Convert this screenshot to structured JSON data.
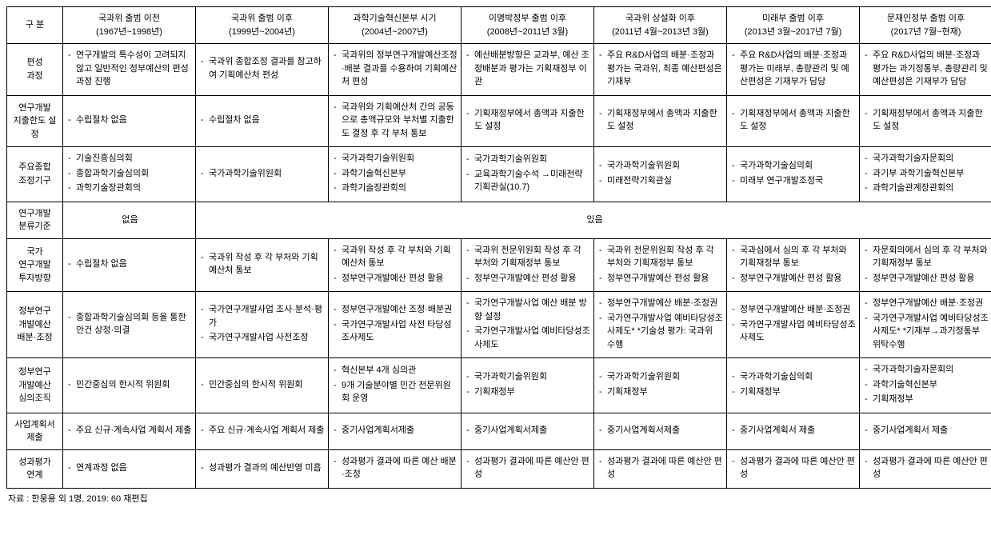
{
  "header": {
    "category": "구 분",
    "periods": [
      {
        "title": "국과위 출범 이전",
        "range": "(1967년~1998년)"
      },
      {
        "title": "국과위 출범 이후",
        "range": "(1999년~2004년)"
      },
      {
        "title": "과학기술혁신본부 시기",
        "range": "(2004년~2007년)"
      },
      {
        "title": "이명박정부 출범 이후",
        "range": "(2008년~2011년 3월)"
      },
      {
        "title": "국과위 상설화 이후",
        "range": "(2011년 4월~2013년 3월)"
      },
      {
        "title": "미래부 출범 이후",
        "range": "(2013년 3월~2017년 7월)"
      },
      {
        "title": "문재인정부 출범 이후",
        "range": "(2017년 7월~현재)"
      }
    ]
  },
  "rows": [
    {
      "label": "편성\n과정",
      "cells": [
        [
          "연구개발의 특수성이 고려되지 않고 일반적인 정부예산의 편성과정 진행"
        ],
        [
          "국과위 종합조정 결과를 참고하여 기획예산처 편성"
        ],
        [
          "국과위의 정부연구개발예산조정·배분 결과를 수용하여 기획예산처 편성"
        ],
        [
          "예산배분방향은 교과부, 예산 조정배분과 평가는 기획재정부 이관"
        ],
        [
          "주요 R&D사업의 배분·조정과 평가는 국과위, 최종 예산편성은 기재부"
        ],
        [
          "주요 R&D사업의 배분·조정과 평가는 미래부, 총량관리 및 예산편성은 기재부가 담당"
        ],
        [
          "주요 R&D사업의 배분·조정과 평가는 과기정통부, 총량관리 및 예산편성은 기재부가 담당"
        ]
      ]
    },
    {
      "label": "연구개발\n지출한도 설정",
      "cells": [
        [
          "수립절차 없음"
        ],
        [
          "수립절차 없음"
        ],
        [
          "국과위와 기획예산처 간의 공동으로 총액규모와 부처별 지출한도 결정 후 각 부처 통보"
        ],
        [
          "기획재정부에서 총액과 지출한도 설정"
        ],
        [
          "기획재정부에서 총액과 지출한도 설정"
        ],
        [
          "기획재정부에서 총액과 지출한도 설정"
        ],
        [
          "기획재정부에서 총액과 지출한도 설정"
        ]
      ]
    },
    {
      "label": "주요종합\n조정기구",
      "cells": [
        [
          "기술진흥심의회",
          "종합과학기술심의회",
          "과학기술장관회의"
        ],
        [
          "국가과학기술위원회"
        ],
        [
          "국가과학기술위원회",
          "과학기술혁신본부",
          "과학기술장관회의"
        ],
        [
          "국가과학기술위원회",
          "교육과학기술수석 →미래전략기획관실(10.7)"
        ],
        [
          "국가과학기술위원회",
          "미래전략기획관실"
        ],
        [
          "국가과학기술심의회",
          "미래부 연구개발조정국"
        ],
        [
          "국가과학기술자문회의",
          "과기부 과학기술혁신본부",
          "과학기술관계장관회의"
        ]
      ]
    },
    {
      "label": "연구개발\n분류기준",
      "special": "classification",
      "none": "없음",
      "exist": "있음"
    },
    {
      "label": "국가\n연구개발\n투자방향",
      "cells": [
        [
          "수립절차 없음"
        ],
        [
          "국과위 작성 후 각 부처와 기획예산처 통보"
        ],
        [
          "국과위 작성 후 각 부처와 기획예산처 통보",
          "정부연구개발예산 편성 활용"
        ],
        [
          "국과위 전문위원회 작성 후 각 부처와 기획재정부 통보",
          "정부연구개발예산 편성 활용"
        ],
        [
          "국과위 전문위원회 작성 후 각 부처와 기획재정부 통보",
          "정부연구개발예산 편성 활용"
        ],
        [
          "국과심에서 심의 후 각 부처와 기획재정부 통보",
          "정부연구개발예산 편성 활용"
        ],
        [
          "자문회의에서 심의 후 각 부처와 기획재정부 통보",
          "정부연구개발예산 편성 활용"
        ]
      ]
    },
    {
      "label": "정부연구\n개발예산\n배분·조정",
      "cells": [
        [
          "종합과학기술심의회 등을 통한 안건 상정·의결"
        ],
        [
          "국가연구개발사업 조사·분석·평가",
          "국가연구개발사업 사전조정"
        ],
        [
          "정부연구개발예산 조정·배분권",
          "국가연구개발사업 사전 타당성조사제도"
        ],
        [
          "국가연구개발사업 예산 배분 방향 설정",
          "국가연구개발사업 예비타당성조사제도"
        ],
        [
          "정부연구개발예산 배분·조정권",
          "국가연구개발사업 예비타당성조사제도* *기술성 평가: 국과위 수행"
        ],
        [
          "정부연구개발예산 배분·조정권",
          "국가연구개발사업 예비타당성조사제도"
        ],
        [
          "정부연구개발예산 배분·조정권",
          "국가연구개발사업 예비타당성조사제도* *기재부→과기정통부 위탁수행"
        ]
      ]
    },
    {
      "label": "정부연구\n개발예산\n심의조직",
      "cells": [
        [
          "민간중심의 한시적 위원회"
        ],
        [
          "민간중심의 한시적 위원회"
        ],
        [
          "혁신본부 4개 심의관",
          "9개 기술분야별 민간 전문위원회 운영"
        ],
        [
          "국가과학기술위원회",
          "기획재정부"
        ],
        [
          "국가과학기술위원회",
          "기획재정부"
        ],
        [
          "국가과학기술심의회",
          "기획재정부"
        ],
        [
          "국가과학기술자문회의",
          "과학기술혁신본부",
          "기획재정부"
        ]
      ]
    },
    {
      "label": "사업계획서 제출",
      "cells": [
        [
          "주요 신규·계속사업 계획서 제출"
        ],
        [
          "주요 신규·계속사업 계획서 제출"
        ],
        [
          "중기사업계획서제출"
        ],
        [
          "중기사업계획서제출"
        ],
        [
          "중기사업계획서제출"
        ],
        [
          "중기사업계획서 제출"
        ],
        [
          "중기사업계획서 제출"
        ]
      ]
    },
    {
      "label": "성과평가\n연계",
      "cells": [
        [
          "연계과정 없음"
        ],
        [
          "성과평가 결과의 예산반영 미흡"
        ],
        [
          "성과평가 결과에 따른 예산 배분·조정"
        ],
        [
          "성과평가 결과에 따른 예산안 편성"
        ],
        [
          "성과평가 결과에 따른 예산안 편성"
        ],
        [
          "성과평가 결과에 따른 예산안 편성"
        ],
        [
          "성과평가 결과에 따른 예산안 편성"
        ]
      ]
    }
  ],
  "footnote": "자료 : 한웅용 외 1명, 2019: 60 재편집"
}
